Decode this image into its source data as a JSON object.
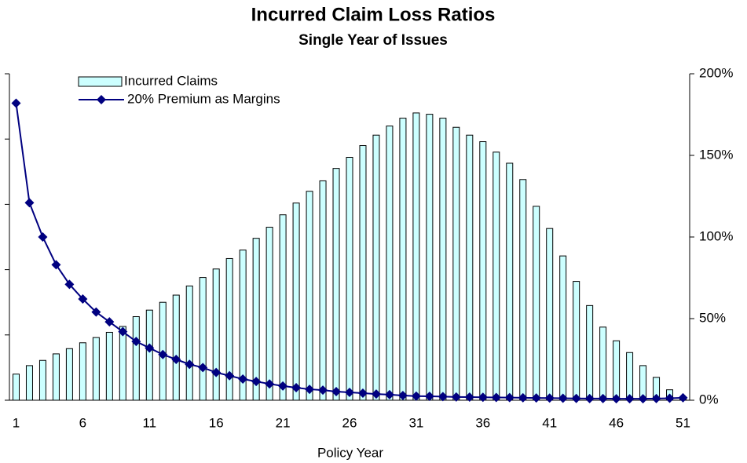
{
  "chart_data": {
    "type": "bar_line",
    "title": "Incurred Claim Loss Ratios",
    "subtitle": "Single Year of Issues",
    "x_label": "Policy Year",
    "categories": [
      1,
      null,
      null,
      null,
      null,
      6,
      null,
      null,
      null,
      null,
      11,
      null,
      null,
      null,
      null,
      16,
      null,
      null,
      null,
      null,
      21,
      null,
      null,
      null,
      null,
      26,
      null,
      null,
      null,
      null,
      31,
      null,
      null,
      null,
      null,
      36,
      null,
      null,
      null,
      null,
      41,
      null,
      null,
      null,
      null,
      46,
      null,
      null,
      null,
      null,
      51
    ],
    "series": [
      {
        "name": "Incurred Claims",
        "type": "bar",
        "color": "#ccffff",
        "values": [
          0.4,
          0.53,
          0.61,
          0.71,
          0.79,
          0.88,
          0.96,
          1.04,
          1.13,
          1.28,
          1.38,
          1.5,
          1.61,
          1.75,
          1.88,
          2.01,
          2.17,
          2.3,
          2.48,
          2.65,
          2.84,
          3.02,
          3.2,
          3.36,
          3.55,
          3.72,
          3.9,
          4.06,
          4.2,
          4.32,
          4.4,
          4.38,
          4.32,
          4.18,
          4.06,
          3.96,
          3.8,
          3.63,
          3.38,
          2.97,
          2.63,
          2.21,
          1.82,
          1.45,
          1.12,
          0.91,
          0.73,
          0.53,
          0.35,
          0.16,
          0.05
        ]
      },
      {
        "name": "20% Premium as Margins",
        "type": "line",
        "axis": "y2",
        "color": "#000080",
        "values": [
          182,
          121,
          100,
          83,
          71,
          62,
          54,
          48,
          42,
          36,
          32,
          28,
          25,
          22,
          20,
          17,
          15,
          13,
          11.5,
          10,
          8.7,
          7.7,
          6.7,
          6.2,
          5.3,
          4.8,
          4.3,
          3.8,
          3.4,
          2.9,
          2.5,
          2.4,
          2.2,
          2.0,
          1.9,
          1.8,
          1.7,
          1.6,
          1.5,
          1.4,
          1.3,
          1.2,
          1.1,
          1.0,
          1.0,
          0.9,
          0.9,
          0.9,
          1.0,
          1.2,
          1.5
        ]
      }
    ],
    "ylim": [
      0,
      5
    ],
    "yticks": [
      0,
      1,
      2,
      3,
      4,
      5
    ],
    "y2lim": [
      0,
      200
    ],
    "y2ticks": [
      {
        "value": 0,
        "label": "0%"
      },
      {
        "value": 50,
        "label": "50%"
      },
      {
        "value": 100,
        "label": "100%"
      },
      {
        "value": 150,
        "label": "150%"
      },
      {
        "value": 200,
        "label": "200%"
      }
    ],
    "legend": "upper left"
  }
}
